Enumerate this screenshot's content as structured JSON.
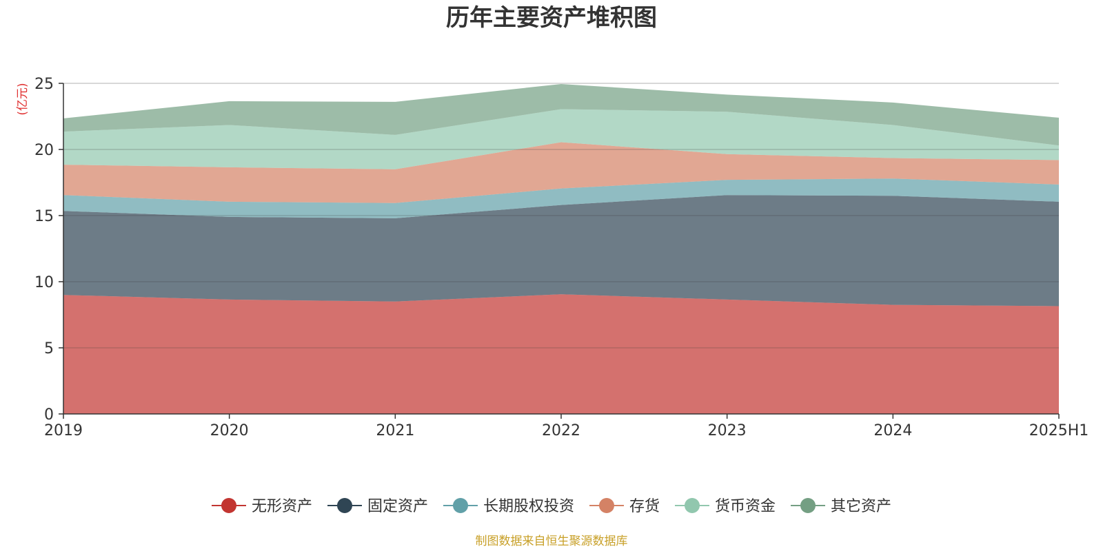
{
  "chart_data": {
    "type": "area",
    "stacked": true,
    "title": "历年主要资产堆积图",
    "unit_label": "(亿元)",
    "source": "制图数据来自恒生聚源数据库",
    "categories": [
      "2019",
      "2020",
      "2021",
      "2022",
      "2023",
      "2024",
      "2025H1"
    ],
    "ylim": [
      0,
      25
    ],
    "yticks": [
      0,
      5,
      10,
      15,
      20,
      25
    ],
    "grid": true,
    "legend_position": "bottom",
    "series": [
      {
        "name": "无形资产",
        "color": "#c23531",
        "values": [
          9.0,
          8.65,
          8.5,
          9.05,
          8.65,
          8.25,
          8.15
        ]
      },
      {
        "name": "固定资产",
        "color": "#2f4554",
        "values": [
          6.35,
          6.25,
          6.3,
          6.75,
          7.9,
          8.25,
          7.9
        ]
      },
      {
        "name": "长期股权投资",
        "color": "#61a0a8",
        "values": [
          1.2,
          1.15,
          1.15,
          1.25,
          1.15,
          1.3,
          1.3
        ]
      },
      {
        "name": "存货",
        "color": "#d48265",
        "values": [
          2.3,
          2.6,
          2.55,
          3.5,
          1.95,
          1.55,
          1.85
        ]
      },
      {
        "name": "货币资金",
        "color": "#91c7ae",
        "values": [
          2.5,
          3.2,
          2.6,
          2.5,
          3.2,
          2.5,
          1.1
        ]
      },
      {
        "name": "其它资产",
        "color": "#749f83",
        "values": [
          1.0,
          1.8,
          2.5,
          1.9,
          1.3,
          1.7,
          2.1
        ]
      }
    ]
  }
}
